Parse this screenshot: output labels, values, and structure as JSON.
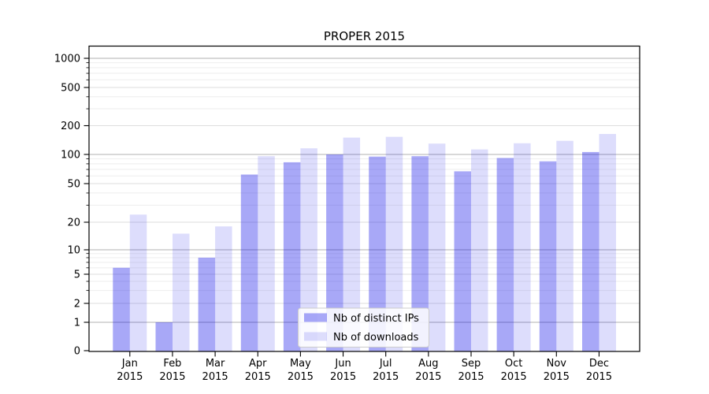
{
  "chart_data": {
    "type": "bar",
    "title": "PROPER 2015",
    "categories": [
      "Jan 2015",
      "Feb 2015",
      "Mar 2015",
      "Apr 2015",
      "May 2015",
      "Jun 2015",
      "Jul 2015",
      "Aug 2015",
      "Sep 2015",
      "Oct 2015",
      "Nov 2015",
      "Dec 2015"
    ],
    "series": [
      {
        "name": "Nb of distinct IPs",
        "color": "#a9a9f7",
        "fill": "rgba(0,0,232,0.34)",
        "values": [
          6,
          1,
          8,
          62,
          83,
          100,
          95,
          96,
          67,
          92,
          85,
          106
        ]
      },
      {
        "name": "Nb of downloads",
        "color": "#dcdcf9",
        "fill": "rgba(0,0,232,0.135)",
        "values": [
          24,
          15,
          18,
          96,
          116,
          150,
          153,
          130,
          113,
          131,
          139,
          164
        ]
      }
    ],
    "xlabel": "",
    "ylabel": "",
    "y_axis": {
      "scale": "symlog",
      "tick_labels": [
        "0",
        "1",
        "2",
        "5",
        "10",
        "20",
        "50",
        "100",
        "200",
        "500",
        "1000"
      ],
      "range": [
        0,
        1300
      ]
    },
    "grid": true,
    "legend": {
      "position": "bottom-center",
      "entries": [
        "Nb of distinct IPs",
        "Nb of downloads"
      ]
    }
  }
}
